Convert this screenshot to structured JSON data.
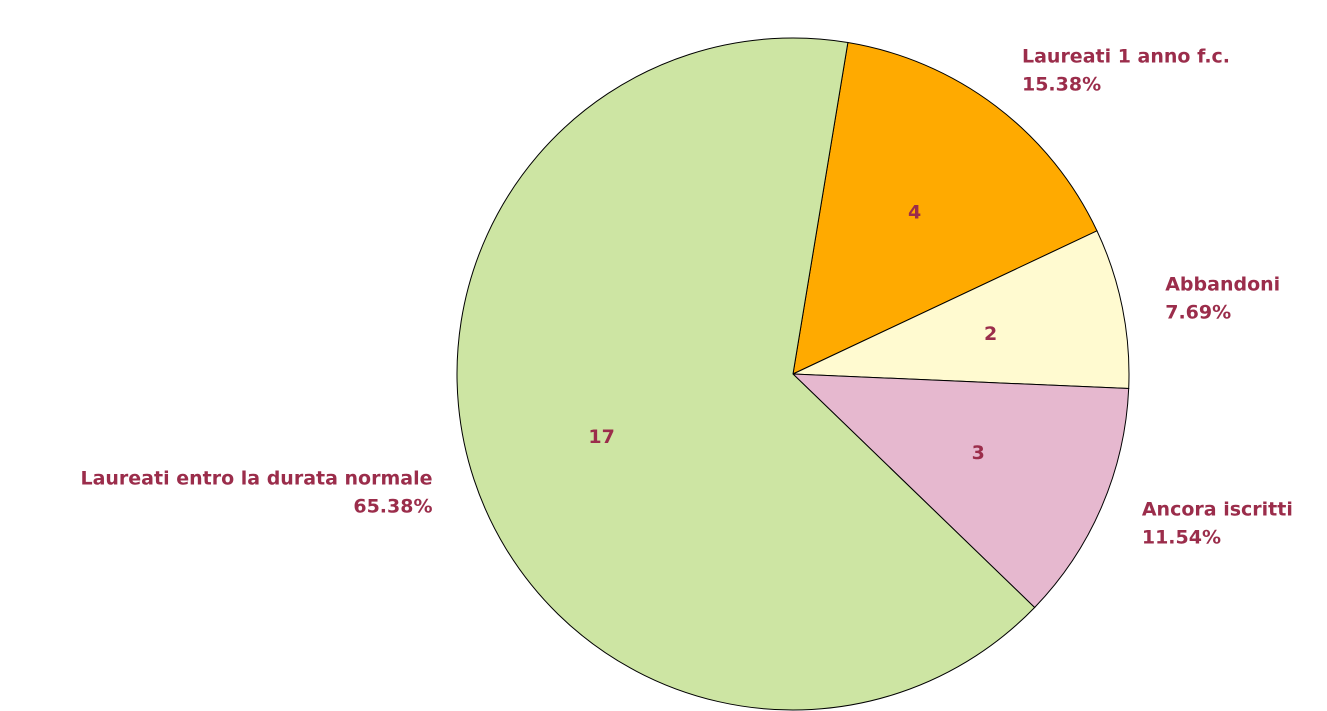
{
  "chart_data": {
    "type": "pie",
    "categories": [
      "Laureati 1 anno f.c.",
      "Abbandoni",
      "Ancora iscritti",
      "Laureati entro la durata normale"
    ],
    "values": [
      4,
      2,
      3,
      17
    ],
    "percent_labels": [
      "15.38%",
      "7.69%",
      "11.54%",
      "65.38%"
    ],
    "colors": [
      "#ffaa00",
      "#fffad0",
      "#e6b8cf",
      "#cde5a3"
    ]
  }
}
